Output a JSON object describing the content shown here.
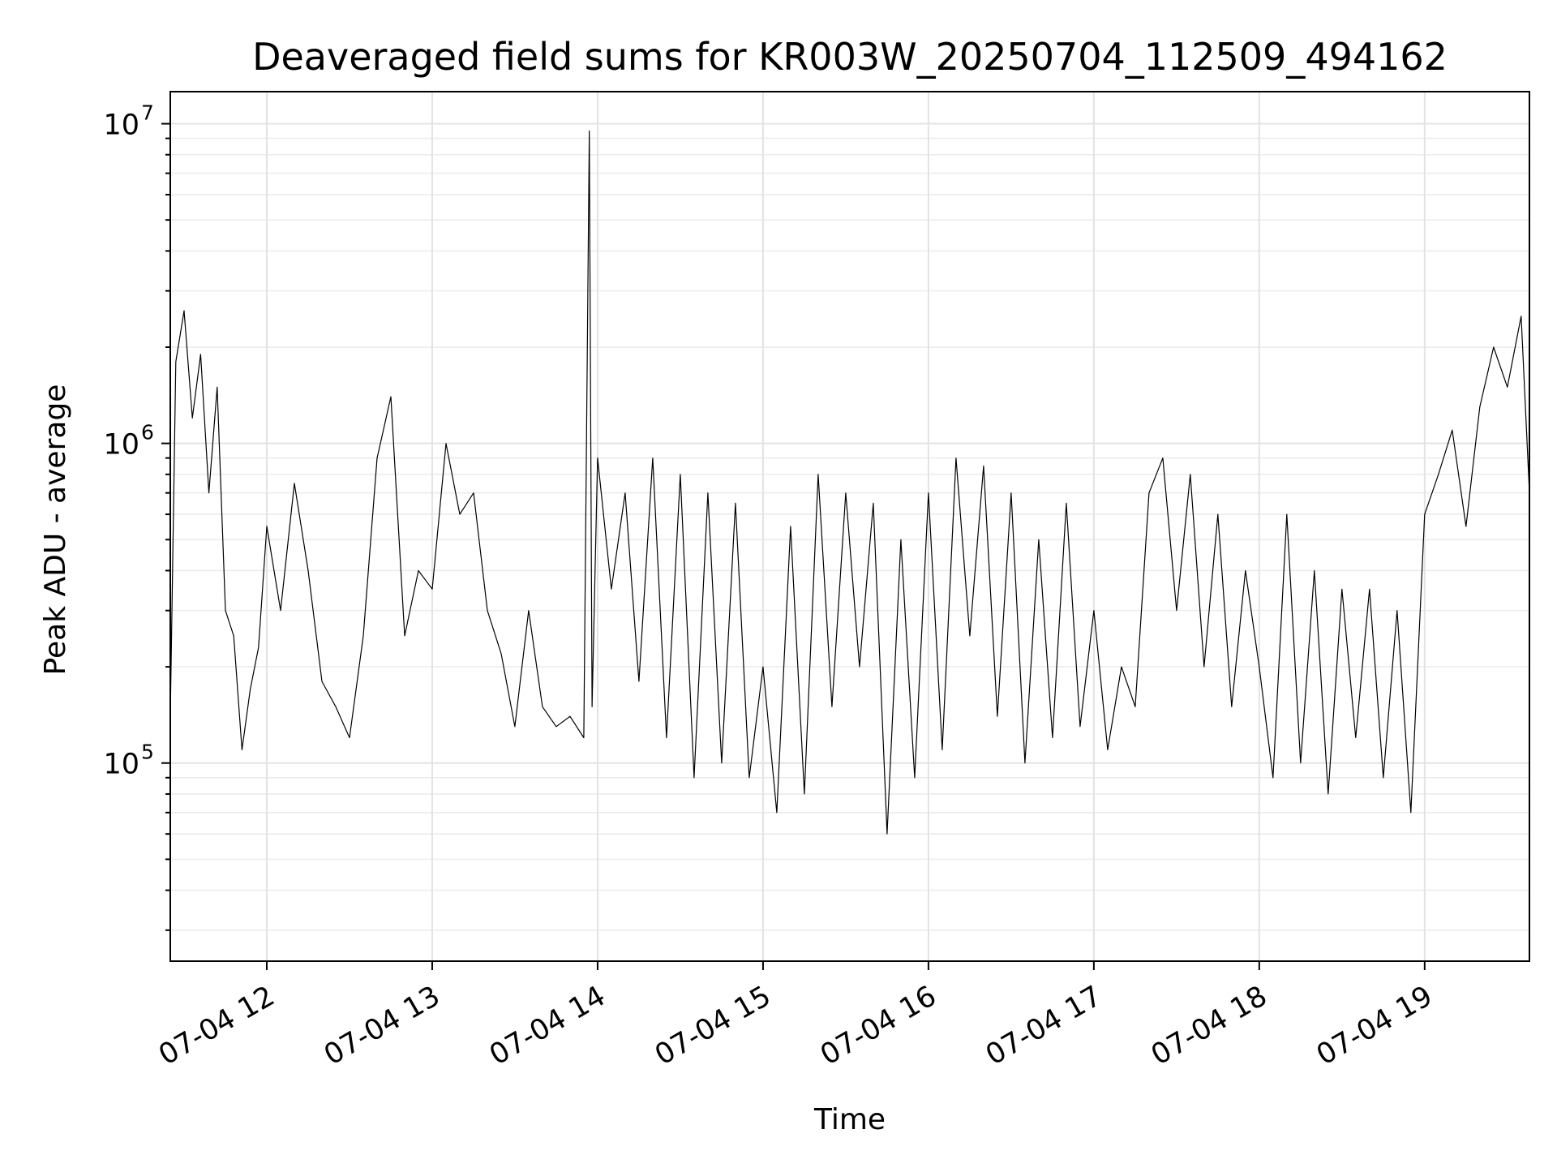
{
  "chart_data": {
    "type": "line",
    "title": "Deaveraged field sums for KR003W_20250704_112509_494162",
    "xlabel": "Time",
    "ylabel": "Peak ADU - average",
    "y_scale": "log",
    "ylim": [
      24000,
      12600000
    ],
    "xlim": [
      "2025-07-04 11:25",
      "2025-07-04 19:38"
    ],
    "x_ticks": [
      {
        "time": "2025-07-04 12:00",
        "label": "07-04 12"
      },
      {
        "time": "2025-07-04 13:00",
        "label": "07-04 13"
      },
      {
        "time": "2025-07-04 14:00",
        "label": "07-04 14"
      },
      {
        "time": "2025-07-04 15:00",
        "label": "07-04 15"
      },
      {
        "time": "2025-07-04 16:00",
        "label": "07-04 16"
      },
      {
        "time": "2025-07-04 17:00",
        "label": "07-04 17"
      },
      {
        "time": "2025-07-04 18:00",
        "label": "07-04 18"
      },
      {
        "time": "2025-07-04 19:00",
        "label": "07-04 19"
      }
    ],
    "y_ticks": [
      {
        "value": 100000,
        "base": "10",
        "exp": "5"
      },
      {
        "value": 1000000,
        "base": "10",
        "exp": "6"
      },
      {
        "value": 10000000,
        "base": "10",
        "exp": "7"
      }
    ],
    "grid": true,
    "line_color": "#000000",
    "series": [
      {
        "x": [
          "2025-07-04 11:25",
          "2025-07-04 11:27",
          "2025-07-04 11:30",
          "2025-07-04 11:33",
          "2025-07-04 11:36",
          "2025-07-04 11:39",
          "2025-07-04 11:42",
          "2025-07-04 11:45",
          "2025-07-04 11:48",
          "2025-07-04 11:51",
          "2025-07-04 11:54",
          "2025-07-04 11:57",
          "2025-07-04 12:00",
          "2025-07-04 12:05",
          "2025-07-04 12:10",
          "2025-07-04 12:15",
          "2025-07-04 12:20",
          "2025-07-04 12:25",
          "2025-07-04 12:30",
          "2025-07-04 12:35",
          "2025-07-04 12:40",
          "2025-07-04 12:45",
          "2025-07-04 12:50",
          "2025-07-04 12:55",
          "2025-07-04 13:00",
          "2025-07-04 13:05",
          "2025-07-04 13:10",
          "2025-07-04 13:15",
          "2025-07-04 13:20",
          "2025-07-04 13:25",
          "2025-07-04 13:30",
          "2025-07-04 13:35",
          "2025-07-04 13:40",
          "2025-07-04 13:45",
          "2025-07-04 13:50",
          "2025-07-04 13:55",
          "2025-07-04 13:57",
          "2025-07-04 13:58",
          "2025-07-04 14:00",
          "2025-07-04 14:05",
          "2025-07-04 14:10",
          "2025-07-04 14:15",
          "2025-07-04 14:20",
          "2025-07-04 14:25",
          "2025-07-04 14:30",
          "2025-07-04 14:35",
          "2025-07-04 14:40",
          "2025-07-04 14:45",
          "2025-07-04 14:50",
          "2025-07-04 14:55",
          "2025-07-04 15:00",
          "2025-07-04 15:05",
          "2025-07-04 15:10",
          "2025-07-04 15:15",
          "2025-07-04 15:20",
          "2025-07-04 15:25",
          "2025-07-04 15:30",
          "2025-07-04 15:35",
          "2025-07-04 15:40",
          "2025-07-04 15:45",
          "2025-07-04 15:50",
          "2025-07-04 15:55",
          "2025-07-04 16:00",
          "2025-07-04 16:05",
          "2025-07-04 16:10",
          "2025-07-04 16:15",
          "2025-07-04 16:20",
          "2025-07-04 16:25",
          "2025-07-04 16:30",
          "2025-07-04 16:35",
          "2025-07-04 16:40",
          "2025-07-04 16:45",
          "2025-07-04 16:50",
          "2025-07-04 16:55",
          "2025-07-04 17:00",
          "2025-07-04 17:05",
          "2025-07-04 17:10",
          "2025-07-04 17:15",
          "2025-07-04 17:20",
          "2025-07-04 17:25",
          "2025-07-04 17:30",
          "2025-07-04 17:35",
          "2025-07-04 17:40",
          "2025-07-04 17:45",
          "2025-07-04 17:50",
          "2025-07-04 17:55",
          "2025-07-04 18:00",
          "2025-07-04 18:05",
          "2025-07-04 18:10",
          "2025-07-04 18:15",
          "2025-07-04 18:20",
          "2025-07-04 18:25",
          "2025-07-04 18:30",
          "2025-07-04 18:35",
          "2025-07-04 18:40",
          "2025-07-04 18:45",
          "2025-07-04 18:50",
          "2025-07-04 18:55",
          "2025-07-04 19:00",
          "2025-07-04 19:05",
          "2025-07-04 19:10",
          "2025-07-04 19:15",
          "2025-07-04 19:20",
          "2025-07-04 19:25",
          "2025-07-04 19:30",
          "2025-07-04 19:35",
          "2025-07-04 19:38"
        ],
        "y": [
          140000,
          1800000,
          2600000,
          1200000,
          1900000,
          700000,
          1500000,
          300000,
          250000,
          110000,
          170000,
          230000,
          550000,
          300000,
          750000,
          400000,
          180000,
          150000,
          120000,
          250000,
          900000,
          1400000,
          250000,
          400000,
          350000,
          1000000,
          600000,
          700000,
          300000,
          220000,
          130000,
          300000,
          150000,
          130000,
          140000,
          120000,
          9500000,
          150000,
          900000,
          350000,
          700000,
          180000,
          900000,
          120000,
          800000,
          90000,
          700000,
          100000,
          650000,
          90000,
          200000,
          70000,
          550000,
          80000,
          800000,
          150000,
          700000,
          200000,
          650000,
          60000,
          500000,
          90000,
          700000,
          110000,
          900000,
          250000,
          850000,
          140000,
          700000,
          100000,
          500000,
          120000,
          650000,
          130000,
          300000,
          110000,
          200000,
          150000,
          700000,
          900000,
          300000,
          800000,
          200000,
          600000,
          150000,
          400000,
          200000,
          90000,
          600000,
          100000,
          400000,
          80000,
          350000,
          120000,
          350000,
          90000,
          300000,
          70000,
          600000,
          800000,
          1100000,
          550000,
          1300000,
          2000000,
          1500000,
          2500000,
          700000
        ]
      }
    ]
  }
}
